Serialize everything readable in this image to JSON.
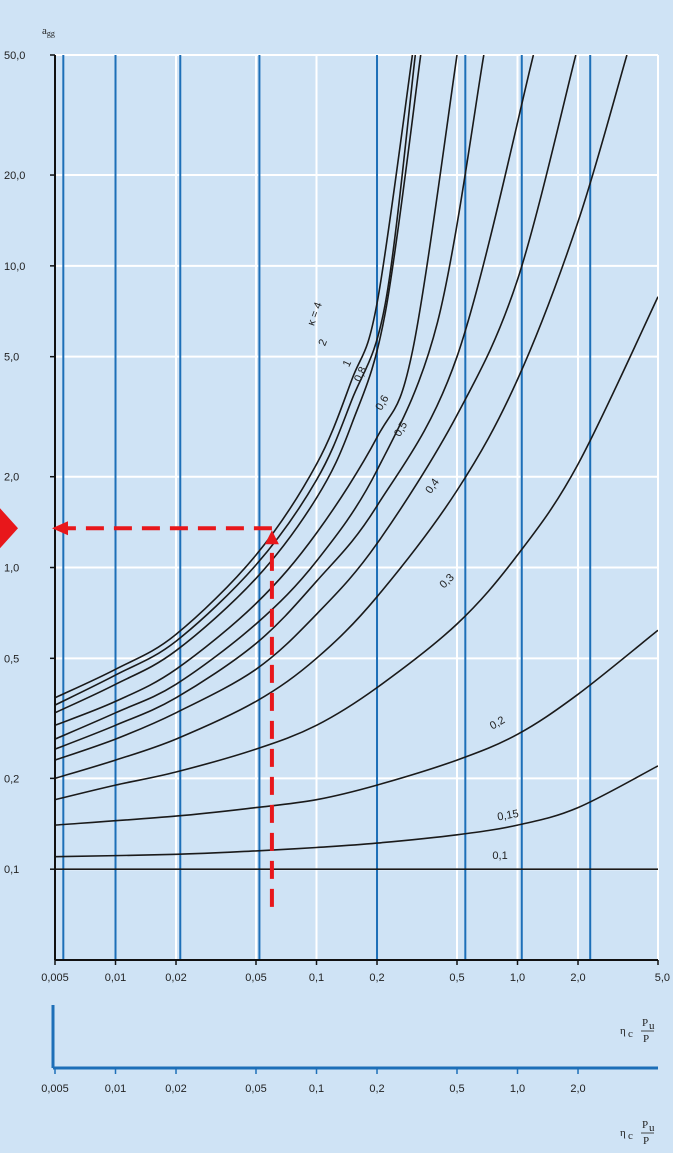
{
  "chart_data": {
    "type": "line",
    "title": "",
    "ylabel": "a_gg",
    "xlabel_parts": {
      "prefix": "η",
      "sub": "c",
      "num": "P",
      "num_sub": "u",
      "den": "P"
    },
    "x_scale": "log",
    "y_scale": "log",
    "xlim": [
      0.005,
      5.0
    ],
    "ylim": [
      0.05,
      50.0
    ],
    "grid": true,
    "x_ticks": [
      0.005,
      0.01,
      0.02,
      0.05,
      0.1,
      0.2,
      0.5,
      1.0,
      2.0,
      5.0
    ],
    "x_tick_labels": [
      "0,005",
      "0,01",
      "0,02",
      "0,05",
      "0,1",
      "0,2",
      "0,5",
      "1,0",
      "2,0",
      "5,0"
    ],
    "x_ticks_bottom": [
      0.005,
      0.01,
      0.02,
      0.05,
      0.1,
      0.2,
      0.5,
      1.0,
      2.0
    ],
    "x_tick_labels_bottom": [
      "0,005",
      "0,01",
      "0,02",
      "0,05",
      "0,1",
      "0,2",
      "0,5",
      "1,0",
      "2,0"
    ],
    "y_ticks": [
      0.1,
      0.2,
      0.5,
      1.0,
      2.0,
      5.0,
      10.0,
      20.0,
      50.0
    ],
    "y_tick_labels": [
      "0,1",
      "0,2",
      "0,5",
      "1,0",
      "2,0",
      "5,0",
      "10,0",
      "20,0",
      "50,0"
    ],
    "blue_vertical_lines_x": [
      0.0055,
      0.01,
      0.021,
      0.052,
      0.2,
      0.55,
      1.05,
      2.3
    ],
    "series": [
      {
        "name": "0,1",
        "k": 0.1,
        "x": [
          0.005,
          5.0
        ],
        "y": [
          0.1,
          0.1
        ]
      },
      {
        "name": "0,15",
        "k": 0.15,
        "x": [
          0.005,
          0.02,
          0.05,
          0.1,
          0.2,
          0.5,
          1.0,
          2.0,
          5.0
        ],
        "y": [
          0.11,
          0.112,
          0.115,
          0.118,
          0.122,
          0.13,
          0.14,
          0.16,
          0.22
        ]
      },
      {
        "name": "0,2",
        "k": 0.2,
        "x": [
          0.005,
          0.02,
          0.05,
          0.1,
          0.2,
          0.5,
          1.0,
          2.0,
          5.0
        ],
        "y": [
          0.14,
          0.15,
          0.16,
          0.17,
          0.19,
          0.23,
          0.28,
          0.38,
          0.62
        ]
      },
      {
        "name": "0,3",
        "k": 0.3,
        "x": [
          0.005,
          0.01,
          0.02,
          0.05,
          0.1,
          0.2,
          0.5,
          1.0,
          2.0,
          5.0
        ],
        "y": [
          0.17,
          0.19,
          0.21,
          0.25,
          0.3,
          0.4,
          0.65,
          1.1,
          2.2,
          7.9
        ]
      },
      {
        "name": "0,4",
        "k": 0.4,
        "x": [
          0.005,
          0.01,
          0.02,
          0.05,
          0.1,
          0.2,
          0.5,
          1.0,
          2.0,
          3.5
        ],
        "y": [
          0.2,
          0.23,
          0.27,
          0.36,
          0.5,
          0.8,
          1.8,
          4.2,
          14.0,
          50.0
        ]
      },
      {
        "name": "0,5",
        "k": 0.5,
        "x": [
          0.005,
          0.01,
          0.02,
          0.05,
          0.1,
          0.2,
          0.5,
          1.0,
          1.95
        ],
        "y": [
          0.23,
          0.27,
          0.33,
          0.46,
          0.7,
          1.2,
          3.2,
          9.0,
          50.0
        ]
      },
      {
        "name": "0,6",
        "k": 0.6,
        "x": [
          0.005,
          0.01,
          0.02,
          0.05,
          0.1,
          0.2,
          0.5,
          1.2
        ],
        "y": [
          0.25,
          0.3,
          0.37,
          0.56,
          0.9,
          1.6,
          5.0,
          50.0
        ]
      },
      {
        "name": "0,8",
        "k": 0.8,
        "x": [
          0.005,
          0.01,
          0.02,
          0.05,
          0.1,
          0.2,
          0.4,
          0.68
        ],
        "y": [
          0.27,
          0.33,
          0.41,
          0.65,
          1.05,
          2.1,
          6.5,
          50.0
        ]
      },
      {
        "name": "1",
        "k": 1.0,
        "x": [
          0.005,
          0.01,
          0.02,
          0.05,
          0.1,
          0.2,
          0.3,
          0.5
        ],
        "y": [
          0.3,
          0.36,
          0.46,
          0.76,
          1.3,
          2.7,
          5.2,
          50.0
        ]
      },
      {
        "name": "2",
        "k": 2.0,
        "x": [
          0.005,
          0.01,
          0.02,
          0.05,
          0.1,
          0.15,
          0.22,
          0.33
        ],
        "y": [
          0.33,
          0.41,
          0.53,
          0.92,
          1.7,
          3.0,
          7.0,
          50.0
        ]
      },
      {
        "name": "κ = 4",
        "k": 4.0,
        "x": [
          0.005,
          0.01,
          0.02,
          0.05,
          0.1,
          0.15,
          0.2,
          0.3
        ],
        "y": [
          0.37,
          0.46,
          0.6,
          1.1,
          2.2,
          4.2,
          7.5,
          50.0
        ]
      },
      {
        "name": "",
        "k": 3.0,
        "x": [
          0.005,
          0.01,
          0.02,
          0.05,
          0.1,
          0.15,
          0.22,
          0.31
        ],
        "y": [
          0.35,
          0.44,
          0.57,
          1.02,
          1.95,
          3.6,
          7.5,
          50.0
        ]
      }
    ],
    "curve_labels": [
      {
        "text": "0,1",
        "x": 0.75,
        "y": 0.108,
        "angle": 0
      },
      {
        "text": "0,15",
        "x": 0.8,
        "y": 0.145,
        "angle": -10
      },
      {
        "text": "0,2",
        "x": 0.75,
        "y": 0.29,
        "angle": -30
      },
      {
        "text": "0,3",
        "x": 0.43,
        "y": 0.85,
        "angle": -45
      },
      {
        "text": "0,4",
        "x": 0.37,
        "y": 1.75,
        "angle": -55
      },
      {
        "text": "0,5",
        "x": 0.26,
        "y": 2.7,
        "angle": -60
      },
      {
        "text": "0,6",
        "x": 0.21,
        "y": 3.3,
        "angle": -60
      },
      {
        "text": "0,8",
        "x": 0.165,
        "y": 4.1,
        "angle": -65
      },
      {
        "text": "1",
        "x": 0.145,
        "y": 4.6,
        "angle": -65
      },
      {
        "text": "2",
        "x": 0.11,
        "y": 5.4,
        "angle": -68
      },
      {
        "text": "κ = 4",
        "x": 0.097,
        "y": 6.3,
        "angle": -70
      }
    ],
    "annotation": {
      "description": "red dashed reading path",
      "x": 0.06,
      "y": 1.35,
      "y_start": 0.075,
      "color": "#e8171b"
    }
  },
  "colors": {
    "background": "#cfe3f5",
    "blue_line": "#1d6fb8",
    "curve": "#1a1a1a",
    "axis": "#111111",
    "white_grid": "#ffffff",
    "red": "#e8171b"
  }
}
